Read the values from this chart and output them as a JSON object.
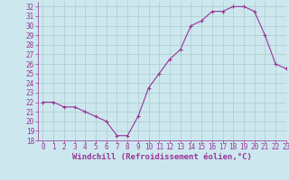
{
  "x": [
    0,
    1,
    2,
    3,
    4,
    5,
    6,
    7,
    8,
    9,
    10,
    11,
    12,
    13,
    14,
    15,
    16,
    17,
    18,
    19,
    20,
    21,
    22,
    23
  ],
  "y": [
    22,
    22,
    21.5,
    21.5,
    21,
    20.5,
    20,
    18.5,
    18.5,
    20.5,
    23.5,
    25,
    26.5,
    27.5,
    30,
    30.5,
    31.5,
    31.5,
    32,
    32,
    31.5,
    29,
    26,
    25.5
  ],
  "line_color": "#993399",
  "marker": "+",
  "bg_color": "#cce8ee",
  "grid_color": "#aacccc",
  "xlabel": "Windchill (Refroidissement éolien,°C)",
  "ylim": [
    18,
    32.5
  ],
  "xlim": [
    -0.5,
    23
  ],
  "yticks": [
    18,
    19,
    20,
    21,
    22,
    23,
    24,
    25,
    26,
    27,
    28,
    29,
    30,
    31,
    32
  ],
  "xticks": [
    0,
    1,
    2,
    3,
    4,
    5,
    6,
    7,
    8,
    9,
    10,
    11,
    12,
    13,
    14,
    15,
    16,
    17,
    18,
    19,
    20,
    21,
    22,
    23
  ],
  "tick_fontsize": 5.5,
  "xlabel_fontsize": 6.5,
  "axis_label_color": "#993399"
}
